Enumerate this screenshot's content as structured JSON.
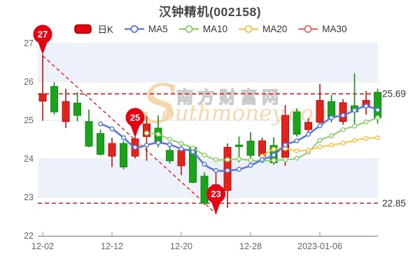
{
  "title": "汉钟精机(002158)",
  "legend": {
    "items": [
      {
        "label": "日K",
        "swatch": "candle",
        "color": "#e60012",
        "border": "#a50000"
      },
      {
        "label": "MA5",
        "swatch": "line",
        "color": "#5878e0"
      },
      {
        "label": "MA10",
        "swatch": "line",
        "color": "#8ccf6e"
      },
      {
        "label": "MA20",
        "swatch": "line",
        "color": "#f8c34c"
      },
      {
        "label": "MA30",
        "swatch": "line",
        "color": "#ee6666"
      }
    ]
  },
  "watermark": {
    "initial": "S",
    "cjk": "南方财富网",
    "latin": "outhmoney.com"
  },
  "colors": {
    "up": "#e1231d",
    "up_border": "#b7150f",
    "down": "#1ca21c",
    "down_border": "#128a10",
    "ma5": "#5878e0",
    "ma10": "#8ccf6e",
    "ma20": "#f8c34c",
    "ma30": "#ee6666",
    "pin": "#e60012",
    "ref_line": "#e01f1f",
    "band": "#edf1fa",
    "grid": "#e7eaf2",
    "axis": "#8a8f99",
    "tick_text": "#666666",
    "ref_text": "#333333",
    "wm_tan": "#f3d6a8",
    "wm_outline": "#c9c9c9"
  },
  "chart_data": {
    "type": "candlestick",
    "title": "汉钟精机(002158)",
    "ylim": [
      22,
      27
    ],
    "y_ticks": [
      27,
      26,
      25,
      24,
      23,
      22
    ],
    "x_tick_labels": [
      "12-02",
      "12-12",
      "12-20",
      "12-28",
      "2023-01-06"
    ],
    "x_tick_indices": [
      0,
      6,
      12,
      18,
      24
    ],
    "grid": true,
    "band_rows": [
      [
        27,
        26
      ],
      [
        24,
        23
      ]
    ],
    "candles": [
      {
        "date": "12-02",
        "open": 25.5,
        "close": 25.69,
        "high": 26.71,
        "low": 24.99,
        "dir": "up"
      },
      {
        "date": "12-05",
        "open": 25.88,
        "close": 25.22,
        "high": 25.99,
        "low": 25.15,
        "dir": "down"
      },
      {
        "date": "12-06",
        "open": 24.97,
        "close": 25.49,
        "high": 25.82,
        "low": 24.8,
        "dir": "up"
      },
      {
        "date": "12-07",
        "open": 25.45,
        "close": 25.13,
        "high": 25.73,
        "low": 24.98,
        "dir": "down"
      },
      {
        "date": "12-08",
        "open": 24.97,
        "close": 24.33,
        "high": 25.28,
        "low": 24.3,
        "dir": "down"
      },
      {
        "date": "12-09",
        "open": 24.66,
        "close": 24.12,
        "high": 24.76,
        "low": 24.09,
        "dir": "down"
      },
      {
        "date": "12-12",
        "open": 24.07,
        "close": 24.4,
        "high": 24.55,
        "low": 23.79,
        "dir": "up"
      },
      {
        "date": "12-13",
        "open": 24.4,
        "close": 23.79,
        "high": 24.47,
        "low": 23.73,
        "dir": "down"
      },
      {
        "date": "12-14",
        "open": 24.07,
        "close": 24.52,
        "high": 24.57,
        "low": 24.01,
        "dir": "up"
      },
      {
        "date": "12-15",
        "open": 24.58,
        "close": 24.91,
        "high": 25.11,
        "low": 23.95,
        "dir": "up"
      },
      {
        "date": "12-16",
        "open": 24.8,
        "close": 24.4,
        "high": 25.13,
        "low": 24.3,
        "dir": "down"
      },
      {
        "date": "12-19",
        "open": 24.22,
        "close": 23.95,
        "high": 24.35,
        "low": 23.88,
        "dir": "down"
      },
      {
        "date": "12-20",
        "open": 23.82,
        "close": 24.22,
        "high": 24.4,
        "low": 23.58,
        "dir": "up"
      },
      {
        "date": "12-21",
        "open": 24.3,
        "close": 23.39,
        "high": 24.34,
        "low": 23.37,
        "dir": "down"
      },
      {
        "date": "12-22",
        "open": 23.55,
        "close": 22.85,
        "high": 23.65,
        "low": 22.8,
        "dir": "down"
      },
      {
        "date": "12-23",
        "open": 22.95,
        "close": 23.33,
        "high": 23.67,
        "low": 22.56,
        "dir": "up"
      },
      {
        "date": "12-26",
        "open": 23.18,
        "close": 24.3,
        "high": 24.4,
        "low": 22.73,
        "dir": "up"
      },
      {
        "date": "12-27",
        "open": 24.36,
        "close": 24.32,
        "high": 24.58,
        "low": 23.91,
        "dir": "down"
      },
      {
        "date": "12-28",
        "open": 24.46,
        "close": 24.09,
        "high": 24.69,
        "low": 23.88,
        "dir": "down"
      },
      {
        "date": "12-29",
        "open": 24.07,
        "close": 24.47,
        "high": 24.55,
        "low": 23.95,
        "dir": "up"
      },
      {
        "date": "12-30",
        "open": 24.35,
        "close": 23.9,
        "high": 24.56,
        "low": 23.85,
        "dir": "down"
      },
      {
        "date": "2023-01-03",
        "open": 24.04,
        "close": 25.13,
        "high": 25.4,
        "low": 23.82,
        "dir": "up"
      },
      {
        "date": "2023-01-04",
        "open": 25.22,
        "close": 24.64,
        "high": 25.31,
        "low": 24.58,
        "dir": "down"
      },
      {
        "date": "2023-01-05",
        "open": 24.76,
        "close": 24.95,
        "high": 25.06,
        "low": 24.67,
        "dir": "up"
      },
      {
        "date": "2023-01-06",
        "open": 24.95,
        "close": 25.52,
        "high": 25.95,
        "low": 24.85,
        "dir": "up"
      },
      {
        "date": "2023-01-09",
        "open": 25.49,
        "close": 25.07,
        "high": 25.66,
        "low": 24.95,
        "dir": "down"
      },
      {
        "date": "2023-01-10",
        "open": 24.97,
        "close": 25.46,
        "high": 25.55,
        "low": 24.89,
        "dir": "up"
      },
      {
        "date": "2023-01-11",
        "open": 25.38,
        "close": 25.22,
        "high": 26.22,
        "low": 24.89,
        "dir": "down"
      },
      {
        "date": "2023-01-12",
        "open": 25.34,
        "close": 25.52,
        "high": 25.76,
        "low": 25.15,
        "dir": "up"
      },
      {
        "date": "2023-01-13",
        "open": 25.73,
        "close": 25.07,
        "high": 25.82,
        "low": 24.92,
        "dir": "down"
      }
    ],
    "series": [
      {
        "name": "MA5",
        "values": [
          null,
          null,
          null,
          null,
          null,
          24.91,
          24.78,
          24.55,
          24.3,
          24.36,
          24.42,
          24.37,
          24.26,
          24.18,
          23.86,
          23.7,
          23.7,
          23.73,
          23.83,
          23.98,
          24.1,
          24.36,
          24.47,
          24.64,
          24.86,
          25.07,
          25.13,
          25.26,
          25.37,
          25.27
        ]
      },
      {
        "name": "MA10",
        "values": [
          null,
          null,
          null,
          null,
          null,
          null,
          null,
          null,
          null,
          24.67,
          24.64,
          24.51,
          24.4,
          24.28,
          24.1,
          23.98,
          23.98,
          24.0,
          23.96,
          23.95,
          23.96,
          23.98,
          24.02,
          24.18,
          24.48,
          24.6,
          24.76,
          24.85,
          24.96,
          25.07
        ]
      },
      {
        "name": "MA20",
        "values": [
          null,
          null,
          null,
          null,
          null,
          null,
          null,
          null,
          null,
          null,
          null,
          null,
          null,
          null,
          null,
          null,
          null,
          null,
          null,
          24.07,
          24.25,
          24.27,
          24.21,
          24.23,
          24.31,
          24.36,
          24.41,
          24.48,
          24.53,
          24.55
        ]
      },
      {
        "name": "MA30",
        "values": []
      }
    ],
    "ref_lines": [
      {
        "price": 25.69,
        "label": "25.69"
      },
      {
        "price": 22.85,
        "label": "22.85"
      }
    ],
    "trend_line": {
      "from_index": 0,
      "from_price": 26.68,
      "to_index": 15,
      "to_price": 22.58
    },
    "pins": [
      {
        "label": "27",
        "index": 0,
        "price": 26.71
      },
      {
        "label": "25",
        "index": 8,
        "price": 24.55
      },
      {
        "label": "23",
        "index": 15,
        "price": 22.56
      }
    ]
  }
}
